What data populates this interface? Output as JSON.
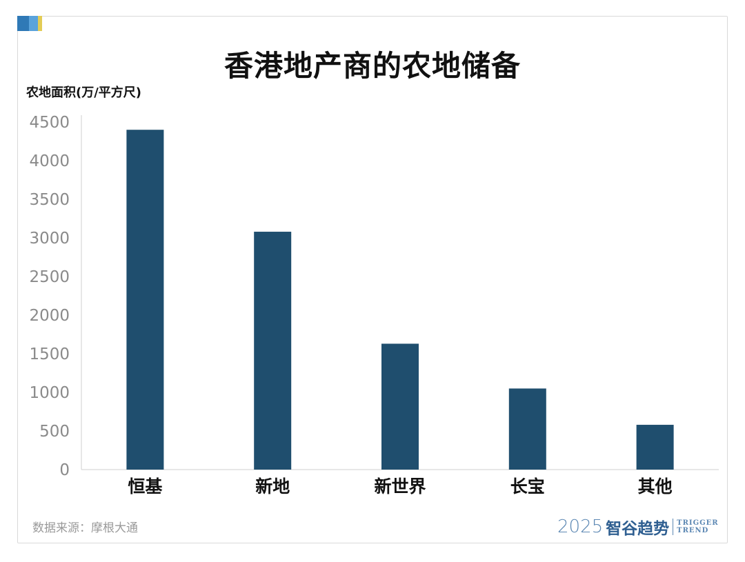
{
  "chart_data": {
    "type": "bar",
    "title": "香港地产商的农地储备",
    "ylabel": "农地面积(万/平方尺)",
    "xlabel": "",
    "categories": [
      "恒基",
      "新地",
      "新世界",
      "长宝",
      "其他"
    ],
    "values": [
      4400,
      3080,
      1630,
      1050,
      580
    ],
    "ylim": [
      0,
      4500
    ],
    "yticks": [
      0,
      500,
      1000,
      1500,
      2000,
      2500,
      3000,
      3500,
      4000,
      4500
    ],
    "grid": false,
    "legend": "none",
    "bar_color": "#1f4e6e"
  },
  "footer": {
    "source": "数据来源：摩根大通",
    "brand_year": "2025",
    "brand_name": "智谷趋势",
    "brand_en_1": "TRIGGER",
    "brand_en_2": "TREND"
  },
  "colors": {
    "accent_blue": "#2f79b6",
    "accent_light_blue": "#5aa3dc",
    "accent_yellow": "#e3cc55"
  }
}
